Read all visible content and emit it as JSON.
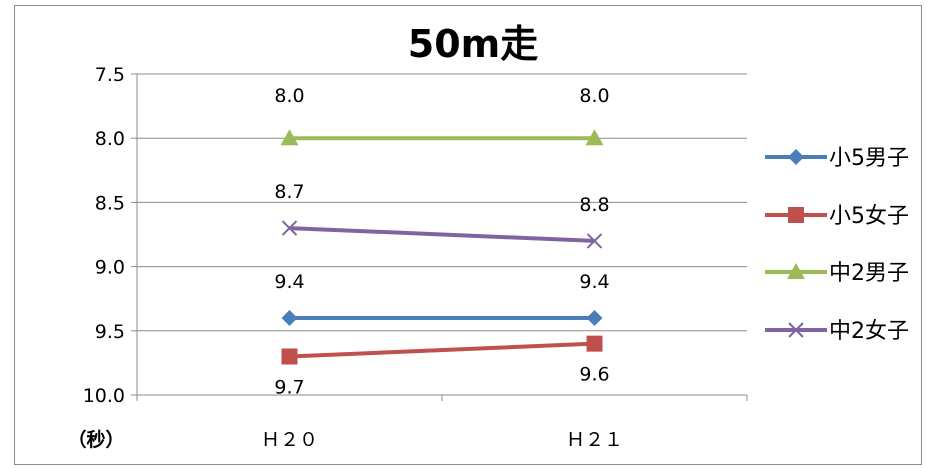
{
  "chart_data": {
    "type": "line",
    "title": "50m走",
    "ylabel": "（秒）",
    "categories": [
      "Ｈ２０",
      "Ｈ２１"
    ],
    "y_axis": {
      "reversed": true,
      "min": 7.5,
      "max": 10.0,
      "step": 0.5,
      "tick_labels": [
        "7.5",
        "8.0",
        "8.5",
        "9.0",
        "9.5",
        "10.0"
      ]
    },
    "grid": true,
    "legend_position": "right",
    "series": [
      {
        "name": "小5男子",
        "values": [
          9.4,
          9.4
        ],
        "labels": [
          "9.4",
          "9.4"
        ],
        "color": "#4a7ebb",
        "marker": "diamond"
      },
      {
        "name": "小5女子",
        "values": [
          9.7,
          9.6
        ],
        "labels": [
          "9.7",
          "9.6"
        ],
        "color": "#c0504d",
        "marker": "square"
      },
      {
        "name": "中2男子",
        "values": [
          8.0,
          8.0
        ],
        "labels": [
          "8.0",
          "8.0"
        ],
        "color": "#9bbb59",
        "marker": "triangle"
      },
      {
        "name": "中2女子",
        "values": [
          8.7,
          8.8
        ],
        "labels": [
          "8.7",
          "8.8"
        ],
        "color": "#8064a2",
        "marker": "x"
      }
    ]
  }
}
